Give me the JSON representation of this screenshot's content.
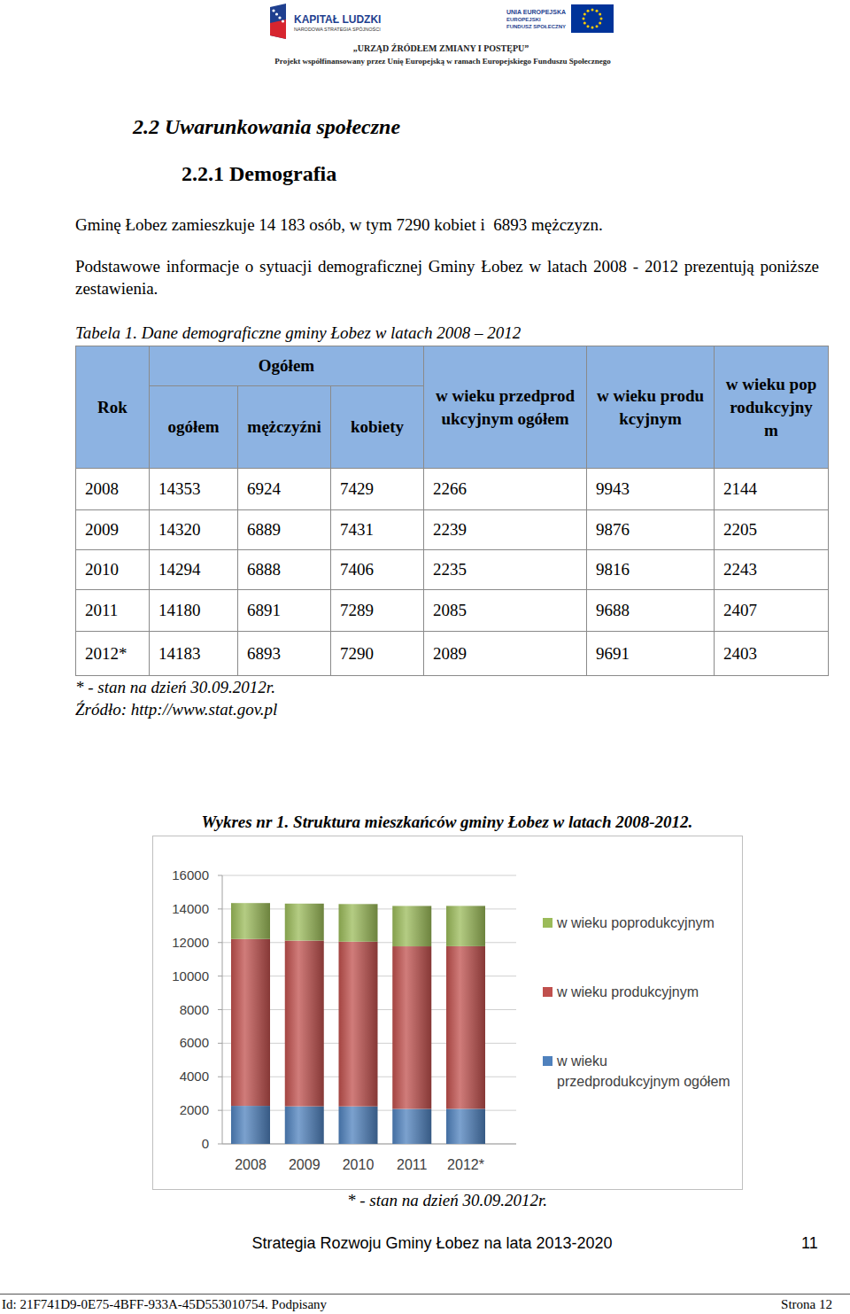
{
  "header": {
    "logo_left_title": "KAPITAŁ LUDZKI",
    "logo_left_subtitle": "NARODOWA STRATEGIA SPÓJNOŚCI",
    "logo_right_lines": [
      "UNIA EUROPEJSKA",
      "EUROPEJSKI",
      "FUNDUSZ SPOŁECZNY"
    ],
    "motto": "„URZĄD ŹRÓDŁEM ZMIANY I POSTĘPU”",
    "project": "Projekt współfinansowany przez Unię Europejską w ramach Europejskiego Funduszu Społecznego"
  },
  "section": {
    "heading": "2.2 Uwarunkowania społeczne",
    "subheading": "2.2.1 Demografia"
  },
  "paragraphs": [
    "Gminę Łobez zamieszkuje 14 183 osób, w tym 7290 kobiet i  6893 mężczyzn.",
    "Podstawowe informacje o sytuacji demograficznej Gminy Łobez w latach 2008 - 2012 prezentują poniższe zestawienia."
  ],
  "table": {
    "caption": "Tabela 1. Dane demograficzne gminy Łobez w latach 2008 – 2012",
    "header_group": "Ogółem",
    "columns": [
      "Rok",
      "ogółem",
      "mężczyźni",
      "kobiety",
      "w wieku przedprodukcyjnym ogółem",
      "w wieku produkcyjnym",
      "w wieku poprodukcyjnym"
    ],
    "rows": [
      [
        "2008",
        14353,
        6924,
        7429,
        2266,
        9943,
        2144
      ],
      [
        "2009",
        14320,
        6889,
        7431,
        2239,
        9876,
        2205
      ],
      [
        "2010",
        14294,
        6888,
        7406,
        2235,
        9816,
        2243
      ],
      [
        "2011",
        14180,
        6891,
        7289,
        2085,
        9688,
        2407
      ],
      [
        "2012*",
        14183,
        6893,
        7290,
        2089,
        9691,
        2403
      ]
    ],
    "notes": [
      "* - stan na dzień 30.09.2012r.",
      "Źródło: http://www.stat.gov.pl"
    ]
  },
  "chart_data": {
    "type": "bar",
    "stacked": true,
    "title": "Wykres nr 1. Struktura mieszkańców gminy Łobez w latach 2008-2012.",
    "categories": [
      "2008",
      "2009",
      "2010",
      "2011",
      "2012*"
    ],
    "series": [
      {
        "name": "w wieku przedprodukcyjnym ogółem",
        "color": "#4f81bd",
        "values": [
          2266,
          2239,
          2235,
          2085,
          2089
        ]
      },
      {
        "name": "w wieku produkcyjnym",
        "color": "#c0504d",
        "values": [
          9943,
          9876,
          9816,
          9688,
          9691
        ]
      },
      {
        "name": "w wieku poprodukcyjnym",
        "color": "#9bbb59",
        "values": [
          2144,
          2205,
          2243,
          2407,
          2403
        ]
      }
    ],
    "ylim": [
      0,
      16000
    ],
    "yticks": [
      0,
      2000,
      4000,
      6000,
      8000,
      10000,
      12000,
      14000,
      16000
    ],
    "grid": true,
    "legend": "right",
    "annotations": [
      "* - stan na dzień 30.09.2012r."
    ]
  },
  "footer": {
    "title": "Strategia Rozwoju Gminy Łobez na lata 2013-2020",
    "page": 11,
    "id_line": "Id: 21F741D9-0E75-4BFF-933A-45D553010754. Podpisany",
    "sheet": "Strona 12"
  }
}
